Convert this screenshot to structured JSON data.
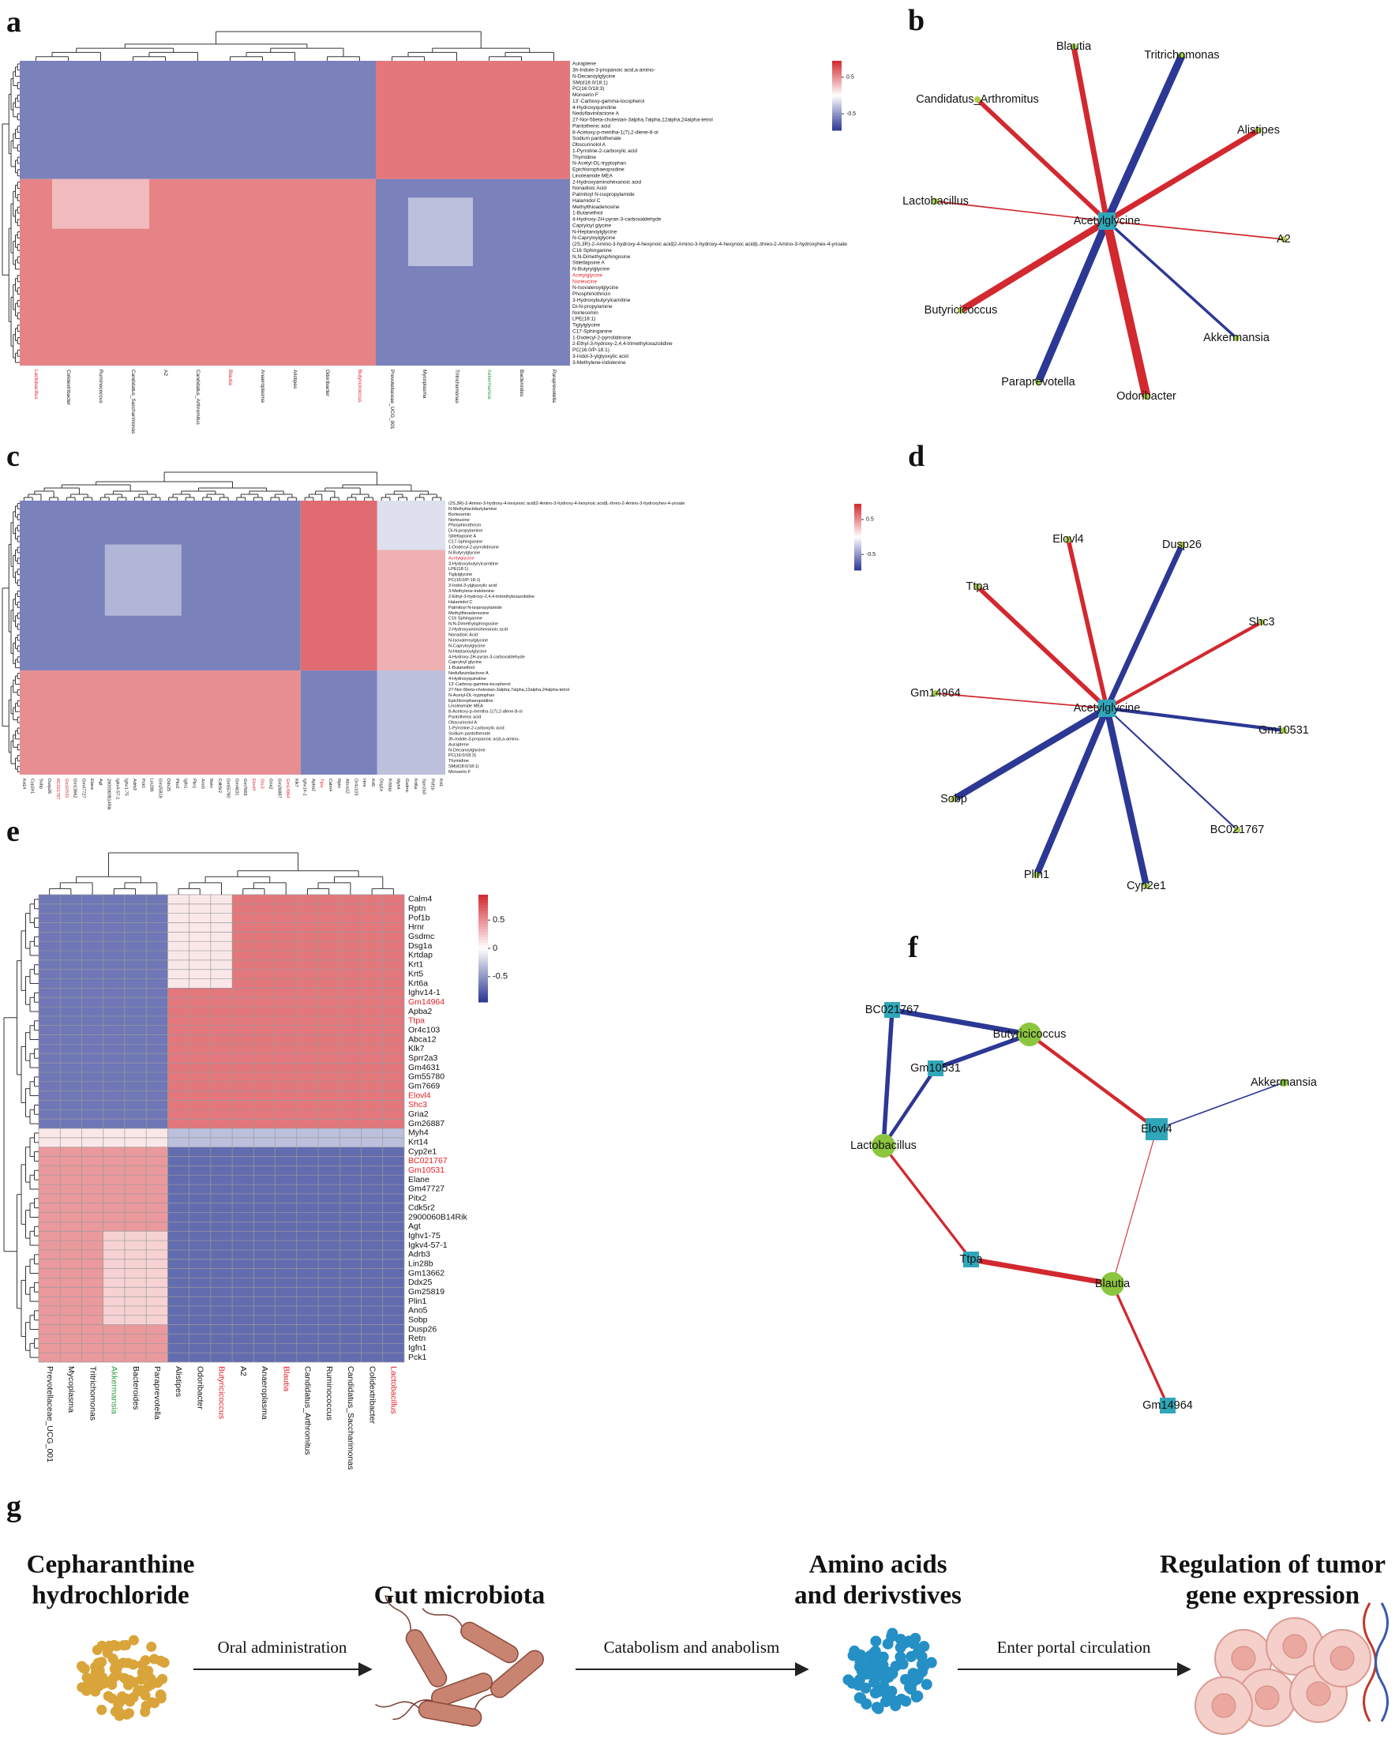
{
  "colors": {
    "high": "#d2282f",
    "mid": "#ffffff",
    "low": "#2c3894",
    "label_red": "#e21f26",
    "label_green": "#2a9d3a",
    "node_circle": "#8cc63e",
    "node_square": "#2fa7b9",
    "leaf": "#a8d04a"
  },
  "panels": {
    "a": {
      "label": "a",
      "rows": [
        "Auraptene",
        "3h-Indole-3-propanoic acid,a-amino-",
        "N-Decanoylglycine",
        "SM(d18:0/18:1)",
        "PC(16:0/18:3)",
        "Monoerin F",
        "13'-Carboxy-gamma-tocopherol",
        "4-Hydroxyquinoline",
        "Neduflavinilactone A",
        "27-Nor-5beta-cholestan-3alpha,7alpha,12alpha,24alpha-tetrol",
        "Pantothenic acid",
        "8-Acetoxy-p-mentha-1(7),2-diene-8-ol",
        "Sodium pantothenate",
        "Obscurinolol A",
        "1-Pyrroline-2-carboxylic acid",
        "Thymidine",
        "N-Acetyl-DL-tryptophan",
        "Epichlorophaeopsidine",
        "Linoleamide MEA",
        "2-Hydroxyaminohexanoic acid",
        "Nonadioic Acid",
        "Palmitoyl N-isopropylamide",
        "Halamidol C",
        "Methylthioadenosine",
        "1-Butanethiol",
        "4-Hydroxy-2H-pyran-3-carboxaldehyde",
        "Capryloyl glycine",
        "N-Heptanoylglycine",
        "N-Capryloylglycine",
        "(2S,3R)-2-Amino-3-hydroxy-4-hexynoic acid|2-Amino-3-hydroxy-4-hexynoic acid|L-threo-2-Amino-3-hydroxyhex-4-ynoate",
        "C16 Sphinganine",
        "N,N-Dimethylsphingosine",
        "Stiletlapsine A",
        "N-Butyrylglycine",
        "Acetylglycine",
        "Norleucine",
        "N-Isovaleroylglycine",
        "Phosphinothricin",
        "3-Hydroxybutyrylcarnitine",
        "Di-N-propylamine",
        "Norlesomin",
        "LPE(18:1)",
        "Tiglylglycine",
        "C17-Sphinganine",
        "1-Dodecyl-2-pyrrolidinone",
        "2-Ethyl-3-hydroxy-2,4,4-trimethyloxazolidine",
        "PC(16:0/P-18:1)",
        "3-Indol-3-ylglyoxylic acid",
        "3-Methylene-indolenine"
      ],
      "cols": [
        "Lactobacillus",
        "Colidextribacter",
        "Ruminococcus",
        "Candidatus_Saccharimonas",
        "A2",
        "Candidatus_Arthromitus",
        "Blautia",
        "Anaeroplasma",
        "Alistipes",
        "Odoribacter",
        "Butyricicoccus",
        "Prevotellaceae_UCG_001",
        "Mycoplasma",
        "Tritrichomonas",
        "Akkermansia",
        "Bacteroides",
        "Paraprevotella"
      ],
      "red_rows": [
        34,
        35
      ],
      "red_cols": [
        0,
        6,
        10
      ],
      "green_cols": [
        14
      ],
      "blocks": [
        {
          "rows": [
            0,
            18
          ],
          "cols": [
            0,
            10
          ],
          "value": -0.6
        },
        {
          "rows": [
            0,
            18
          ],
          "cols": [
            11,
            16
          ],
          "value": 0.6
        },
        {
          "rows": [
            19,
            48
          ],
          "cols": [
            0,
            10
          ],
          "value": 0.55
        },
        {
          "rows": [
            19,
            48
          ],
          "cols": [
            11,
            16
          ],
          "value": -0.6
        },
        {
          "rows": [
            22,
            32
          ],
          "cols": [
            12,
            13
          ],
          "value": -0.3
        },
        {
          "rows": [
            19,
            26
          ],
          "cols": [
            1,
            3
          ],
          "value": 0.3
        }
      ],
      "colorbar": {
        "lim": [
          -0.95,
          0.95
        ],
        "ticks": [
          0.5,
          -0.5
        ]
      }
    },
    "b": {
      "label": "b",
      "center": "Acetylglycine",
      "nodes": [
        {
          "name": "Blautia",
          "color": "#d2282f",
          "weight": 5
        },
        {
          "name": "Tritrichomonas",
          "color": "#2c3894",
          "weight": 7
        },
        {
          "name": "Candidatus_Arthromitus",
          "color": "#d2282f",
          "weight": 4
        },
        {
          "name": "Alistipes",
          "color": "#d2282f",
          "weight": 5
        },
        {
          "name": "Lactobacillus",
          "color": "#d2282f",
          "weight": 1.2
        },
        {
          "name": "A2",
          "color": "#d2282f",
          "weight": 1.2
        },
        {
          "name": "Butyricicoccus",
          "color": "#d2282f",
          "weight": 6
        },
        {
          "name": "Akkermansia",
          "color": "#2c3894",
          "weight": 2.5
        },
        {
          "name": "Paraprevotella",
          "color": "#2c3894",
          "weight": 7
        },
        {
          "name": "Odoribacter",
          "color": "#d2282f",
          "weight": 8
        }
      ]
    },
    "c": {
      "label": "c",
      "rows": [
        "(2S,3R)-2-Amino-3-hydroxy-4-hexynoic acid|2-Amino-3-hydroxy-4-hexynoic acid|L-threo-2-Amino-3-hydroxyhex-4-ynoate",
        "N-Methyltaclobutylamine",
        "Borlesomin",
        "Norleucine",
        "Phosphinothricin",
        "Di-N-propylamine",
        "Stiletlapsine A",
        "C17-Sphinganine",
        "1-Dodecyl-2-pyrrolidinone",
        "N-Butyrylglycine",
        "Acetylglycine",
        "3-Hydroxybutyrylcarnitine",
        "LPE(18:1)",
        "Tiglylglycine",
        "PC(16:0/P-18:1)",
        "3-Indol-3-ylglyoxylic acid",
        "3-Methylene-indolenine",
        "2-Ethyl-3-hydroxy-2,4,4-trimethyloxazolidine",
        "Halamidol C",
        "Palmitoyl N-isopropylamide",
        "Methylthioadenosine",
        "C16 Sphinganine",
        "N,N-Dimethylsphingosine",
        "2-Hydroxyaminohexanoic acid",
        "Nonadioic Acid",
        "N-Isovaleroylglycine",
        "N-Capryloylglycine",
        "N-Heptanoylglycine",
        "4-Hydroxy-2H-pyran-3-carboxaldehyde",
        "Capryloyl glycine",
        "1-Butanethiol",
        "Neduflavinilactone A",
        "4-Hydroxyquinoline",
        "13'-Carboxy-gamma-tocopherol",
        "27-Nor-5beta-cholestan-3alpha,7alpha,12alpha,24alpha-tetrol",
        "N-Acetyl-DL-tryptophan",
        "Epichlorophaeopsidine",
        "Linoleamide MEA",
        "8-Acetoxy-p-mentha-1(7),2-diene-8-ol",
        "Pantothenic acid",
        "Obscurinolol A",
        "1-Pyrroline-2-carboxylic acid",
        "Sodium pantothenate",
        "3h-Indole-3-propanoic acid,a-amino-",
        "Auraptene",
        "N-Decanoylglycine",
        "PC(16:0/18:3)",
        "Thymidine",
        "SM(d18:0/18:1)",
        "Monoerin F"
      ],
      "cols": [
        "Krt14",
        "Cyp2e1",
        "Sobp",
        "Dusp26",
        "BC021767",
        "Gm10531",
        "Gm13662",
        "Gm47727",
        "Elane",
        "Agt",
        "2900060B14Rik",
        "Igkv4-57-1",
        "Ighv1-75",
        "Adrb3",
        "Pck1",
        "Lin28b",
        "Gm25819",
        "Ddx25",
        "Pitx2",
        "Igfn1",
        "Plin1",
        "Ano5",
        "Retn",
        "Cdk5r2",
        "Gm55780",
        "Gm4631",
        "Gm7669",
        "Elovl4",
        "Shc3",
        "Gria2",
        "Gm26887",
        "Gm14964",
        "Klk7",
        "Ighv14-1",
        "Apba2",
        "Ttpa",
        "Calm4",
        "Rptn",
        "Abca12",
        "Or4c103",
        "Hrnr",
        "Krt5",
        "Dsg1a",
        "Krtdap",
        "Myh4",
        "Gsdmc",
        "Krt6a",
        "Sprr2a3",
        "Pof1b",
        "Krt1"
      ],
      "red_rows": [
        10
      ],
      "red_cols": [
        4,
        5,
        27,
        28,
        31,
        35
      ],
      "green_cols": [],
      "blocks": [
        {
          "rows": [
            0,
            30
          ],
          "cols": [
            0,
            32
          ],
          "value": -0.6
        },
        {
          "rows": [
            0,
            30
          ],
          "cols": [
            33,
            41
          ],
          "value": 0.65
        },
        {
          "rows": [
            0,
            30
          ],
          "cols": [
            42,
            49
          ],
          "value": 0.35
        },
        {
          "rows": [
            31,
            49
          ],
          "cols": [
            0,
            32
          ],
          "value": 0.5
        },
        {
          "rows": [
            31,
            49
          ],
          "cols": [
            33,
            41
          ],
          "value": -0.6
        },
        {
          "rows": [
            31,
            49
          ],
          "cols": [
            42,
            49
          ],
          "value": -0.3
        },
        {
          "rows": [
            0,
            8
          ],
          "cols": [
            42,
            49
          ],
          "value": -0.15
        },
        {
          "rows": [
            8,
            20
          ],
          "cols": [
            10,
            18
          ],
          "value": -0.35
        }
      ],
      "colorbar": {
        "lim": [
          -0.95,
          0.95
        ],
        "ticks": [
          0.5,
          -0.5
        ]
      }
    },
    "d": {
      "label": "d",
      "center": "Acetylglycine",
      "nodes": [
        {
          "name": "Elovl4",
          "color": "#d2282f",
          "weight": 4
        },
        {
          "name": "Dusp26",
          "color": "#2c3894",
          "weight": 5
        },
        {
          "name": "Ttpa",
          "color": "#d2282f",
          "weight": 4
        },
        {
          "name": "Shc3",
          "color": "#d2282f",
          "weight": 3
        },
        {
          "name": "Gm14964",
          "color": "#d2282f",
          "weight": 1.2
        },
        {
          "name": "Gm10531",
          "color": "#2c3894",
          "weight": 3
        },
        {
          "name": "Sobp",
          "color": "#2c3894",
          "weight": 6
        },
        {
          "name": "BC021767",
          "color": "#2c3894",
          "weight": 1.5
        },
        {
          "name": "Plin1",
          "color": "#2c3894",
          "weight": 6
        },
        {
          "name": "Cyp2e1",
          "color": "#2c3894",
          "weight": 6
        }
      ]
    },
    "e": {
      "label": "e",
      "rows": [
        "Calm4",
        "Rptn",
        "Pof1b",
        "Hrnr",
        "Gsdmc",
        "Dsg1a",
        "Krtdap",
        "Krt1",
        "Krt5",
        "Krt6a",
        "Ighv14-1",
        "Gm14964",
        "Apba2",
        "Ttpa",
        "Or4c103",
        "Abca12",
        "Klk7",
        "Sprr2a3",
        "Gm4631",
        "Gm55780",
        "Gm7669",
        "Elovl4",
        "Shc3",
        "Gria2",
        "Gm26887",
        "Myh4",
        "Krt14",
        "Cyp2e1",
        "BC021767",
        "Gm10531",
        "Elane",
        "Gm47727",
        "Pitx2",
        "Cdk5r2",
        "2900060B14Rik",
        "Agt",
        "Ighv1-75",
        "Igkv4-57-1",
        "Adrb3",
        "Lin28b",
        "Gm13662",
        "Ddx25",
        "Gm25819",
        "Plin1",
        "Ano5",
        "Sobp",
        "Dusp26",
        "Retn",
        "Igfn1",
        "Pck1"
      ],
      "cols": [
        "Prevotellaceae_UCG_001",
        "Mycoplasma",
        "Tritrichomonas",
        "Akkermansia",
        "Bacteroides",
        "Paraprevotella",
        "Alistipes",
        "Odoribacter",
        "Butyricicoccus",
        "A2",
        "Anaeroplasma",
        "Blautia",
        "Candidatus_Arthromitus",
        "Ruminococcus",
        "Candidatus_Saccharimonas",
        "Colidextribacter",
        "Lactobacillus"
      ],
      "red_rows": [
        11,
        13,
        21,
        22,
        28,
        29
      ],
      "red_cols": [
        8,
        11,
        16
      ],
      "green_cols": [
        3
      ],
      "blocks": [
        {
          "rows": [
            0,
            24
          ],
          "cols": [
            0,
            5
          ],
          "value": -0.65
        },
        {
          "rows": [
            0,
            24
          ],
          "cols": [
            6,
            16
          ],
          "value": 0.6
        },
        {
          "rows": [
            0,
            9
          ],
          "cols": [
            6,
            8
          ],
          "value": 0.1
        },
        {
          "rows": [
            25,
            26
          ],
          "cols": [
            0,
            5
          ],
          "value": 0.1
        },
        {
          "rows": [
            25,
            26
          ],
          "cols": [
            6,
            16
          ],
          "value": -0.3
        },
        {
          "rows": [
            27,
            49
          ],
          "cols": [
            0,
            5
          ],
          "value": 0.45
        },
        {
          "rows": [
            27,
            49
          ],
          "cols": [
            6,
            16
          ],
          "value": -0.7
        },
        {
          "rows": [
            36,
            45
          ],
          "cols": [
            3,
            5
          ],
          "value": 0.2
        }
      ],
      "colorbar": {
        "lim": [
          -0.95,
          0.95
        ],
        "ticks": [
          0.5,
          0,
          -0.5
        ]
      }
    },
    "f": {
      "label": "f",
      "nodes": [
        {
          "name": "BC021767",
          "shape": "square"
        },
        {
          "name": "Butyricicoccus",
          "shape": "circle"
        },
        {
          "name": "Gm10531",
          "shape": "square"
        },
        {
          "name": "Akkermansia",
          "shape": "circle"
        },
        {
          "name": "Lactobacillus",
          "shape": "circle"
        },
        {
          "name": "Elovl4",
          "shape": "square"
        },
        {
          "name": "Ttpa",
          "shape": "square"
        },
        {
          "name": "Blautia",
          "shape": "circle"
        },
        {
          "name": "Gm14964",
          "shape": "square"
        }
      ],
      "edges": [
        {
          "from": 0,
          "to": 1,
          "color": "#2c3894",
          "weight": 6
        },
        {
          "from": 0,
          "to": 4,
          "color": "#2c3894",
          "weight": 5
        },
        {
          "from": 2,
          "to": 1,
          "color": "#2c3894",
          "weight": 5
        },
        {
          "from": 2,
          "to": 4,
          "color": "#2c3894",
          "weight": 4
        },
        {
          "from": 1,
          "to": 5,
          "color": "#d2282f",
          "weight": 4
        },
        {
          "from": 3,
          "to": 5,
          "color": "#2c3894",
          "weight": 1.5
        },
        {
          "from": 5,
          "to": 7,
          "color": "#d2282f",
          "weight": 1
        },
        {
          "from": 4,
          "to": 6,
          "color": "#d2282f",
          "weight": 3
        },
        {
          "from": 6,
          "to": 7,
          "color": "#d2282f",
          "weight": 6
        },
        {
          "from": 7,
          "to": 8,
          "color": "#d2282f",
          "weight": 3
        }
      ]
    },
    "g": {
      "label": "g",
      "steps": [
        [
          "Cepharanthine",
          "hydrochloride"
        ],
        [
          "Gut microbiota"
        ],
        [
          "Amino acids",
          "and derivstives"
        ],
        [
          "Regulation of tumor",
          "gene expression"
        ]
      ],
      "arrows": [
        "Oral administration",
        "Catabolism and anabolism",
        "Enter portal circulation"
      ]
    }
  }
}
